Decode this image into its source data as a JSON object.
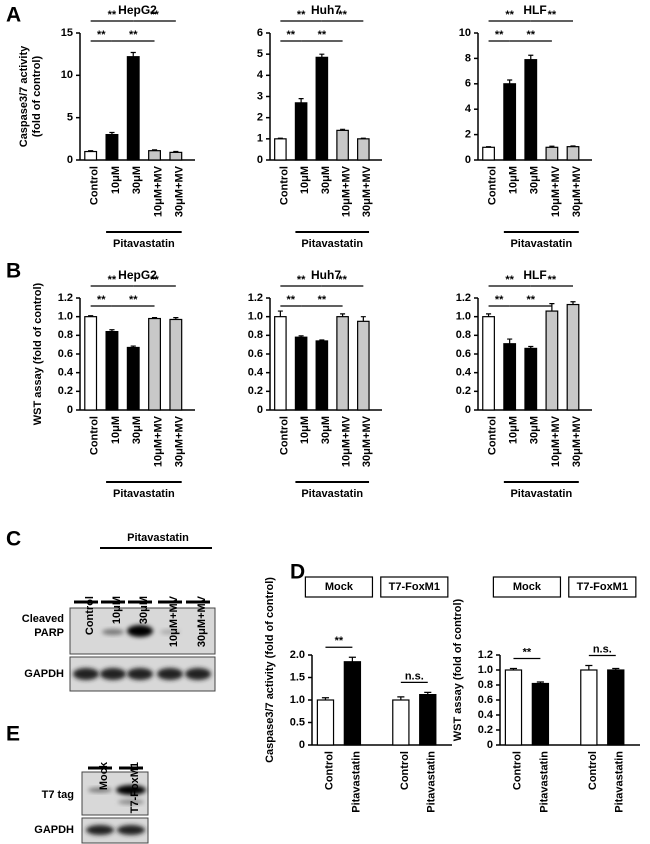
{
  "panel_letters": [
    "A",
    "B",
    "C",
    "D",
    "E"
  ],
  "chart_data": [
    {
      "type": "bar",
      "title": "HepG2",
      "ylabel": [
        "Caspase3/7 activity",
        "(fold of control)"
      ],
      "categories": [
        "Control",
        "10μM",
        "30μM",
        "10μM+MV",
        "30μM+MV"
      ],
      "values": [
        1.0,
        3.0,
        12.2,
        1.1,
        0.9
      ],
      "errors": [
        0.1,
        0.25,
        0.5,
        0.1,
        0.1
      ],
      "colors": [
        "#ffffff",
        "#000000",
        "#000000",
        "#c8c8c8",
        "#c8c8c8"
      ],
      "ylim": [
        0,
        15
      ],
      "yticks": [
        0,
        5,
        10,
        15
      ],
      "group_label": "Pitavastatin",
      "significance": [
        [
          {
            "pair": [
              0,
              2
            ],
            "label": "**"
          },
          {
            "pair": [
              2,
              4
            ],
            "label": "**"
          }
        ],
        [
          {
            "pair": [
              0,
              1
            ],
            "label": "**"
          },
          {
            "pair": [
              1,
              3
            ],
            "label": "**"
          }
        ]
      ]
    },
    {
      "type": "bar",
      "title": "Huh7",
      "categories": [
        "Control",
        "10μM",
        "30μM",
        "10μM+MV",
        "30μM+MV"
      ],
      "values": [
        1.0,
        2.7,
        4.85,
        1.4,
        1.0
      ],
      "errors": [
        0.03,
        0.2,
        0.15,
        0.05,
        0.03
      ],
      "colors": [
        "#ffffff",
        "#000000",
        "#000000",
        "#c8c8c8",
        "#c8c8c8"
      ],
      "ylim": [
        0,
        6
      ],
      "yticks": [
        0,
        1,
        2,
        3,
        4,
        5,
        6
      ],
      "group_label": "Pitavastatin",
      "significance": [
        [
          {
            "pair": [
              0,
              2
            ],
            "label": "**"
          },
          {
            "pair": [
              2,
              4
            ],
            "label": "**"
          }
        ],
        [
          {
            "pair": [
              0,
              1
            ],
            "label": "**"
          },
          {
            "pair": [
              1,
              3
            ],
            "label": "**"
          }
        ]
      ]
    },
    {
      "type": "bar",
      "title": "HLF",
      "categories": [
        "Control",
        "10μM",
        "30μM",
        "10μM+MV",
        "30μM+MV"
      ],
      "values": [
        1.0,
        6.0,
        7.9,
        1.0,
        1.05
      ],
      "errors": [
        0.05,
        0.3,
        0.35,
        0.08,
        0.05
      ],
      "colors": [
        "#ffffff",
        "#000000",
        "#000000",
        "#c8c8c8",
        "#c8c8c8"
      ],
      "ylim": [
        0,
        10
      ],
      "yticks": [
        0,
        2,
        4,
        6,
        8,
        10
      ],
      "group_label": "Pitavastatin",
      "significance": [
        [
          {
            "pair": [
              0,
              2
            ],
            "label": "**"
          },
          {
            "pair": [
              2,
              4
            ],
            "label": "**"
          }
        ],
        [
          {
            "pair": [
              0,
              1
            ],
            "label": "**"
          },
          {
            "pair": [
              1,
              3
            ],
            "label": "**"
          }
        ]
      ]
    },
    {
      "type": "bar",
      "title": "HepG2",
      "ylabel": "WST assay (fold of control)",
      "categories": [
        "Control",
        "10μM",
        "30μM",
        "10μM+MV",
        "30μM+MV"
      ],
      "values": [
        1.0,
        0.84,
        0.67,
        0.98,
        0.97
      ],
      "errors": [
        0.01,
        0.02,
        0.015,
        0.01,
        0.02
      ],
      "colors": [
        "#ffffff",
        "#000000",
        "#000000",
        "#c8c8c8",
        "#c8c8c8"
      ],
      "ylim": [
        0,
        1.2
      ],
      "yticks": [
        0,
        0.2,
        0.4,
        0.6,
        0.8,
        {
          "value": 1,
          "label": "1.0"
        },
        1.2
      ],
      "group_label": "Pitavastatin",
      "significance": [
        [
          {
            "pair": [
              0,
              2
            ],
            "label": "**"
          },
          {
            "pair": [
              2,
              4
            ],
            "label": "**"
          }
        ],
        [
          {
            "pair": [
              0,
              1
            ],
            "label": "**"
          },
          {
            "pair": [
              1,
              3
            ],
            "label": "**"
          }
        ]
      ]
    },
    {
      "type": "bar",
      "title": "Huh7",
      "categories": [
        "Control",
        "10μM",
        "30μM",
        "10μM+MV",
        "30μM+MV"
      ],
      "values": [
        1.0,
        0.78,
        0.74,
        1.0,
        0.95
      ],
      "errors": [
        0.06,
        0.015,
        0.01,
        0.03,
        0.05
      ],
      "colors": [
        "#ffffff",
        "#000000",
        "#000000",
        "#c8c8c8",
        "#c8c8c8"
      ],
      "ylim": [
        0,
        1.2
      ],
      "yticks": [
        0,
        0.2,
        0.4,
        0.6,
        0.8,
        {
          "value": 1,
          "label": "1.0"
        },
        1.2
      ],
      "group_label": "Pitavastatin",
      "significance": [
        [
          {
            "pair": [
              0,
              2
            ],
            "label": "**"
          },
          {
            "pair": [
              2,
              4
            ],
            "label": "**"
          }
        ],
        [
          {
            "pair": [
              0,
              1
            ],
            "label": "**"
          },
          {
            "pair": [
              1,
              3
            ],
            "label": "**"
          }
        ]
      ]
    },
    {
      "type": "bar",
      "title": "HLF",
      "categories": [
        "Control",
        "10μM",
        "30μM",
        "10μM+MV",
        "30μM+MV"
      ],
      "values": [
        1.0,
        0.71,
        0.66,
        1.06,
        1.13
      ],
      "errors": [
        0.03,
        0.05,
        0.02,
        0.08,
        0.03
      ],
      "colors": [
        "#ffffff",
        "#000000",
        "#000000",
        "#c8c8c8",
        "#c8c8c8"
      ],
      "ylim": [
        0,
        1.2
      ],
      "yticks": [
        0,
        0.2,
        0.4,
        0.6,
        0.8,
        {
          "value": 1,
          "label": "1.0"
        },
        1.2
      ],
      "group_label": "Pitavastatin",
      "significance": [
        [
          {
            "pair": [
              0,
              2
            ],
            "label": "**"
          },
          {
            "pair": [
              2,
              4
            ],
            "label": "**"
          }
        ],
        [
          {
            "pair": [
              0,
              1
            ],
            "label": "**"
          },
          {
            "pair": [
              1,
              3
            ],
            "label": "**"
          }
        ]
      ]
    },
    {
      "type": "bar",
      "ylabel": "Caspase3/7 activity (fold of control)",
      "groups": [
        "Mock",
        "T7-FoxM1"
      ],
      "categories": [
        "Control",
        "Pitavastatin",
        "Control",
        "Pitavastatin"
      ],
      "values": [
        1.0,
        1.85,
        1.0,
        1.12
      ],
      "errors": [
        0.05,
        0.1,
        0.07,
        0.05
      ],
      "colors": [
        "#ffffff",
        "#000000",
        "#ffffff",
        "#000000"
      ],
      "ylim": [
        0,
        2
      ],
      "yticks": [
        0,
        0.5,
        {
          "value": 1,
          "label": "1.0"
        },
        1.5,
        {
          "value": 2,
          "label": "2.0"
        }
      ],
      "significance": [
        [
          {
            "pair": [
              0,
              1
            ],
            "label": "**"
          },
          {
            "pair": [
              2,
              3
            ],
            "label": "n.s."
          }
        ]
      ]
    },
    {
      "type": "bar",
      "ylabel": "WST assay (fold of control)",
      "groups": [
        "Mock",
        "T7-FoxM1"
      ],
      "categories": [
        "Control",
        "Pitavastatin",
        "Control",
        "Pitavastatin"
      ],
      "values": [
        1.0,
        0.82,
        1.0,
        1.0
      ],
      "errors": [
        0.02,
        0.02,
        0.06,
        0.02
      ],
      "colors": [
        "#ffffff",
        "#000000",
        "#ffffff",
        "#000000"
      ],
      "ylim": [
        0,
        1.2
      ],
      "yticks": [
        0,
        0.2,
        0.4,
        0.6,
        0.8,
        {
          "value": 1,
          "label": "1.0"
        },
        1.2
      ],
      "significance": [
        [
          {
            "pair": [
              0,
              1
            ],
            "label": "**"
          },
          {
            "pair": [
              2,
              3
            ],
            "label": "n.s."
          }
        ]
      ]
    }
  ],
  "blot_c": {
    "title": "Pitavastatin",
    "lanes": [
      "Control",
      "10μM",
      "30μM",
      "10μM+MV",
      "30μM+MV"
    ],
    "rows": [
      "Cleaved PARP",
      "GAPDH"
    ]
  },
  "blot_e": {
    "lanes": [
      "Mock",
      "T7-FoxM1"
    ],
    "rows": [
      "T7 tag",
      "GAPDH"
    ]
  }
}
